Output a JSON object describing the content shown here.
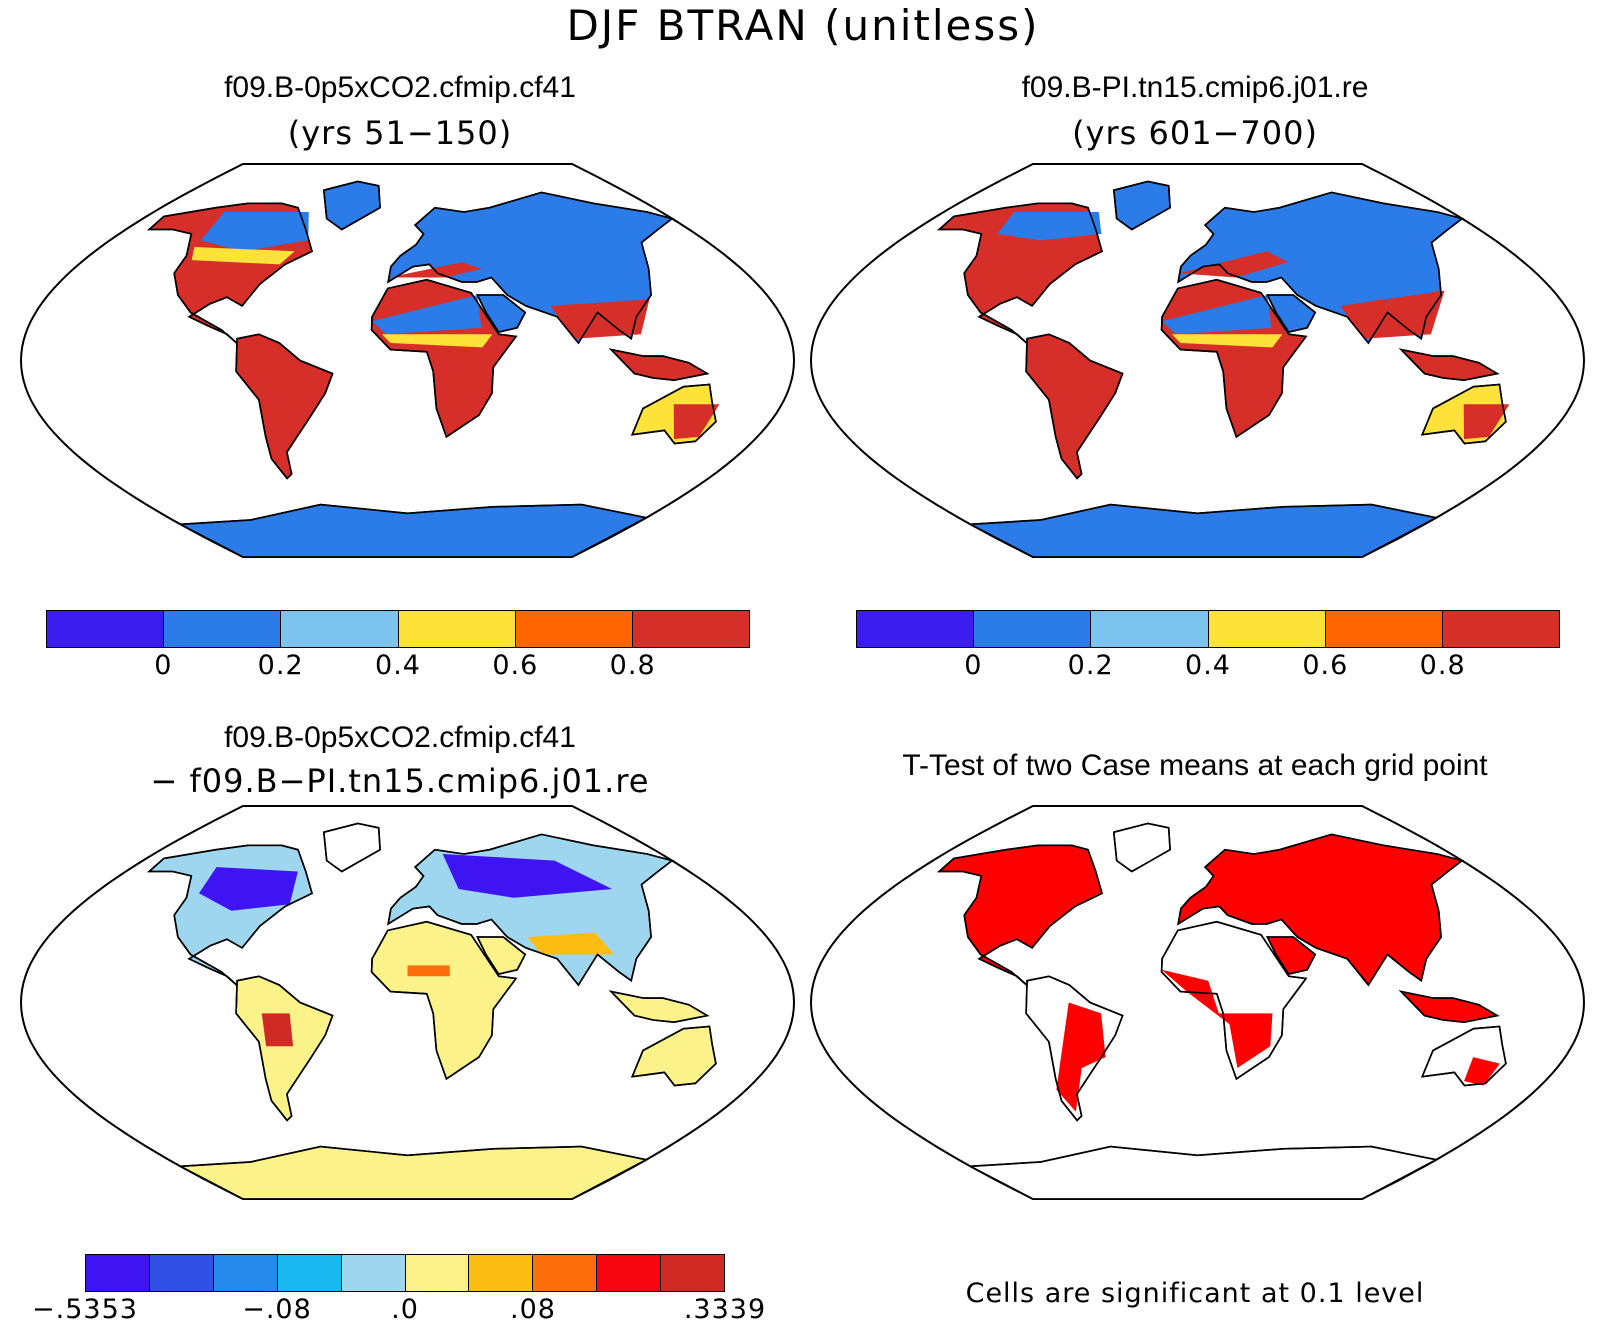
{
  "figure": {
    "title": "DJF BTRAN (unitless)"
  },
  "panels": [
    {
      "id": "case1",
      "title": "f09.B-0p5xCO2.cfmip.cf41",
      "subtitle": "(yrs 51−150)"
    },
    {
      "id": "case2",
      "title": "f09.B-PI.tn15.cmip6.j01.re",
      "subtitle": "(yrs 601−700)"
    },
    {
      "id": "diff",
      "title": "f09.B-0p5xCO2.cfmip.cf41",
      "subtitle": "− f09.B−PI.tn15.cmip6.j01.re"
    },
    {
      "id": "ttest",
      "title": "T-Test of two Case means at each grid point"
    }
  ],
  "colorbars": {
    "absolute": {
      "colors": [
        "#3d1cf0",
        "#2b7be8",
        "#7cc3ee",
        "#fde23a",
        "#ff6600",
        "#d62f29"
      ],
      "labels": [
        "0",
        "0.2",
        "0.4",
        "0.6",
        "0.8"
      ]
    },
    "difference": {
      "colors": [
        "#3e14f2",
        "#2f50e2",
        "#2788ec",
        "#19b8f0",
        "#9fd6ef",
        "#fbf28a",
        "#fcbc12",
        "#fd6f0c",
        "#f70510",
        "#d02a25"
      ],
      "labels": [
        "−.5353",
        "−.08",
        ".0",
        ".08",
        ".3339"
      ]
    }
  },
  "significance_note": "Cells are significant at 0.1 level",
  "map_colors": {
    "land_sig": "#ff0000",
    "coast": "#000000",
    "ocean": "#ffffff"
  }
}
